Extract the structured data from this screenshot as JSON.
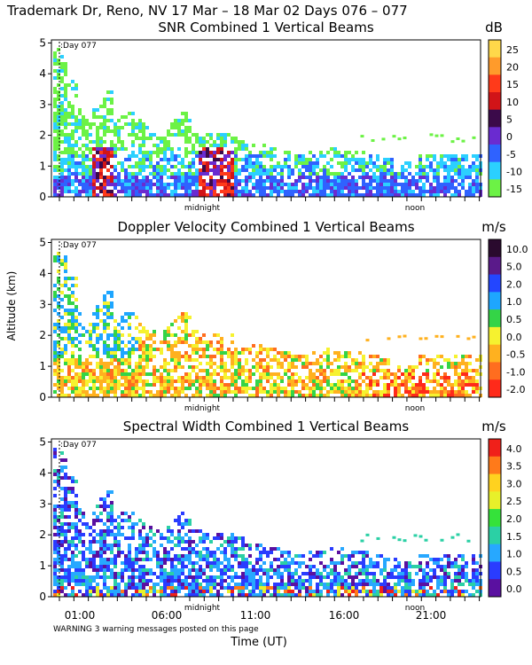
{
  "header": {
    "title": "Trademark Dr, Reno, NV  17 Mar – 18 Mar 02 Days 076 – 077"
  },
  "footer": {
    "warning": "WARNING  3 warning messages posted on this page",
    "xlabel": "Time (UT)"
  },
  "shared_axis": {
    "ylabel": "Altitude (km)",
    "y_ticks": [
      0,
      1,
      2,
      3,
      4,
      5
    ],
    "ylim": [
      0,
      5.1
    ],
    "day_marker": "Day 077",
    "midnight_label": "midnight",
    "noon_label": "noon",
    "time_ticks": [
      "01:00",
      "06:00",
      "11:00",
      "16:00",
      "21:00"
    ]
  },
  "chart_data": [
    {
      "type": "heatmap",
      "title": "SNR Combined 1 Vertical Beams",
      "unit": "dB",
      "colorbar_ticks": [
        "25",
        "20",
        "15",
        "10",
        "5",
        "0",
        "-5",
        "-10",
        "-15"
      ],
      "colorbar_colors": [
        "#ffd84a",
        "#ff9b2b",
        "#ff3a1a",
        "#d11418",
        "#3b0a4a",
        "#6a2bd0",
        "#2f62ff",
        "#2bd0ff",
        "#6cf245"
      ],
      "xlim_hours": [
        23.3,
        24.0
      ],
      "ylim": [
        0,
        5.1
      ]
    },
    {
      "type": "heatmap",
      "title": "Doppler Velocity Combined 1 Vertical Beams",
      "unit": "m/s",
      "colorbar_ticks": [
        "10.0",
        "5.0",
        "2.0",
        "1.0",
        "0.5",
        "0.0",
        "-0.5",
        "-1.0",
        "-2.0"
      ],
      "colorbar_colors": [
        "#2a0a2e",
        "#5a1a8a",
        "#2346ff",
        "#1ea6ff",
        "#34d447",
        "#f6f22f",
        "#ffb11f",
        "#ff6d1f",
        "#ff2a1a"
      ],
      "ylim": [
        0,
        5.1
      ]
    },
    {
      "type": "heatmap",
      "title": "Spectral Width Combined 1 Vertical Beams",
      "unit": "m/s",
      "colorbar_ticks": [
        "4.0",
        "3.5",
        "3.0",
        "2.5",
        "2.0",
        "1.5",
        "1.0",
        "0.5",
        "0.0"
      ],
      "colorbar_colors": [
        "#f0201a",
        "#ff7a1a",
        "#ffd21f",
        "#e8f02a",
        "#35e23a",
        "#2bd0a5",
        "#27a8ff",
        "#2a3cff",
        "#5a10a0"
      ],
      "ylim": [
        0,
        5.1
      ]
    }
  ]
}
